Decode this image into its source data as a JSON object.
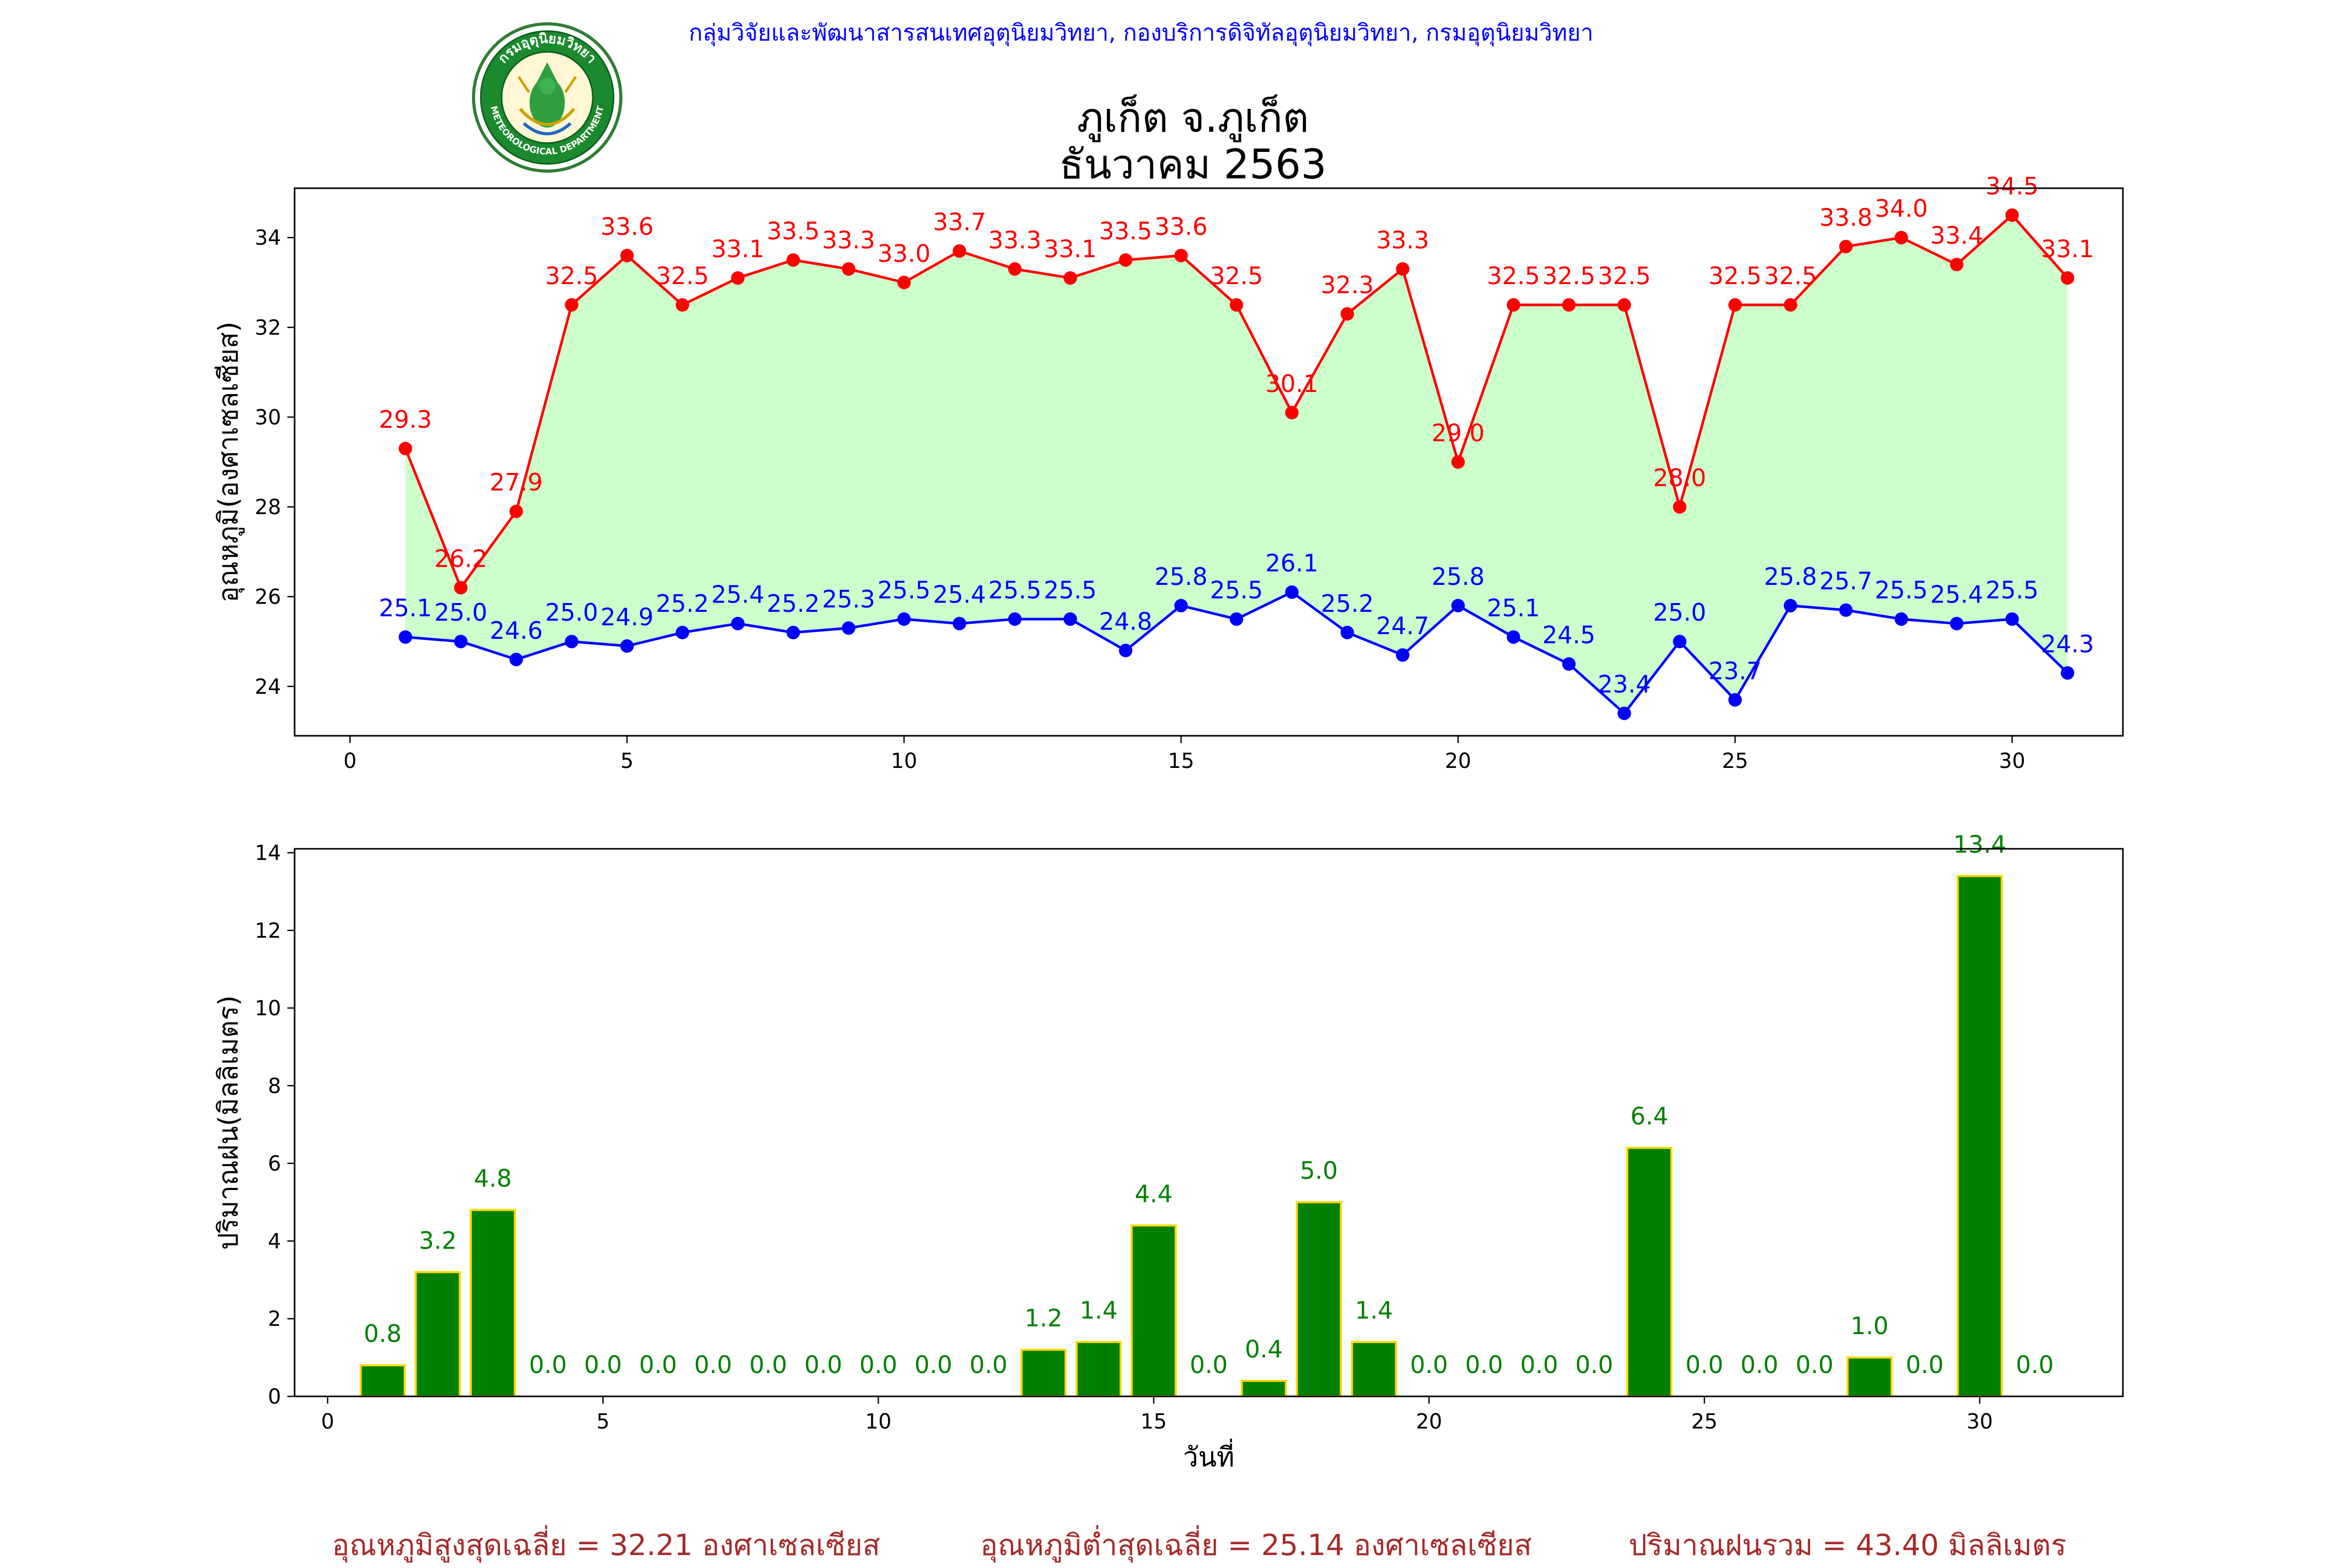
{
  "header": {
    "agency_line": "กลุ่มวิจัยและพัฒนาสารสนเทศอุตุนิยมวิทยา, กองบริการดิจิทัลอุตุนิยมวิทยา, กรมอุตุนิยมวิทยา",
    "logo_text_top": "กรมอุตุนิยมวิทยา",
    "logo_text_bottom": "METEOROLOGICAL DEPARTMENT"
  },
  "title": {
    "station": "ภูเก็ต จ.ภูเก็ต",
    "period": "ธันวาคม 2563"
  },
  "colors": {
    "max": "#ff0000",
    "min": "#0000ff",
    "fill": "#ccffcc",
    "rain": "#008000",
    "rain_edge": "#ffd700",
    "footer": "#a52a2a"
  },
  "chart_data": [
    {
      "type": "line",
      "title": "ภูเก็ต จ.ภูเก็ต ธันวาคม 2563",
      "xlabel": "",
      "ylabel": "อุณหภูมิ(องศาเซลเซียส)",
      "xlim": [
        -1,
        32
      ],
      "ylim": [
        22.9,
        35.1
      ],
      "xticks": [
        0,
        5,
        10,
        15,
        20,
        25,
        30
      ],
      "yticks": [
        24,
        26,
        28,
        30,
        32,
        34
      ],
      "grid": false,
      "x": [
        1,
        2,
        3,
        4,
        5,
        6,
        7,
        8,
        9,
        10,
        11,
        12,
        13,
        14,
        15,
        16,
        17,
        18,
        19,
        20,
        21,
        22,
        23,
        24,
        25,
        26,
        27,
        28,
        29,
        30,
        31
      ],
      "series": [
        {
          "values": [
            29.3,
            26.2,
            27.9,
            32.5,
            33.6,
            32.5,
            33.1,
            33.5,
            33.3,
            33.0,
            33.7,
            33.3,
            33.1,
            33.5,
            33.6,
            32.5,
            30.1,
            32.3,
            33.3,
            29.0,
            32.5,
            32.5,
            32.5,
            28.0,
            32.5,
            32.5,
            33.8,
            34.0,
            33.4,
            34.5,
            33.1
          ]
        },
        {
          "values": [
            25.1,
            25.0,
            24.6,
            25.0,
            24.9,
            25.2,
            25.4,
            25.2,
            25.3,
            25.5,
            25.4,
            25.5,
            25.5,
            24.8,
            25.8,
            25.5,
            26.1,
            25.2,
            24.7,
            25.8,
            25.1,
            24.5,
            23.4,
            25.0,
            23.7,
            25.8,
            25.7,
            25.5,
            25.4,
            25.5,
            24.3
          ]
        }
      ]
    },
    {
      "type": "bar",
      "xlabel": "วันที่",
      "ylabel": "ปริมาณฝน(มิลลิเมตร)",
      "xlim": [
        -0.6,
        32.6
      ],
      "ylim": [
        0,
        14.1
      ],
      "xticks": [
        0,
        5,
        10,
        15,
        20,
        25,
        30
      ],
      "yticks": [
        0,
        2,
        4,
        6,
        8,
        10,
        12,
        14
      ],
      "grid": false,
      "x": [
        1,
        2,
        3,
        4,
        5,
        6,
        7,
        8,
        9,
        10,
        11,
        12,
        13,
        14,
        15,
        16,
        17,
        18,
        19,
        20,
        21,
        22,
        23,
        24,
        25,
        26,
        27,
        28,
        29,
        30,
        31
      ],
      "values": [
        0.8,
        3.2,
        4.8,
        0.0,
        0.0,
        0.0,
        0.0,
        0.0,
        0.0,
        0.0,
        0.0,
        0.0,
        1.2,
        1.4,
        4.4,
        0.0,
        0.4,
        5.0,
        1.4,
        0.0,
        0.0,
        0.0,
        0.0,
        6.4,
        0.0,
        0.0,
        0.0,
        1.0,
        0.0,
        13.4,
        0.0
      ]
    }
  ],
  "footer": {
    "avg_max": "อุณหภูมิสูงสุดเฉลี่ย = 32.21 องศาเซลเซียส",
    "avg_min": "อุณหภูมิต่ำสุดเฉลี่ย = 25.14 องศาเซลเซียส",
    "total_rain": "ปริมาณฝนรวม = 43.40 มิลลิเมตร"
  }
}
